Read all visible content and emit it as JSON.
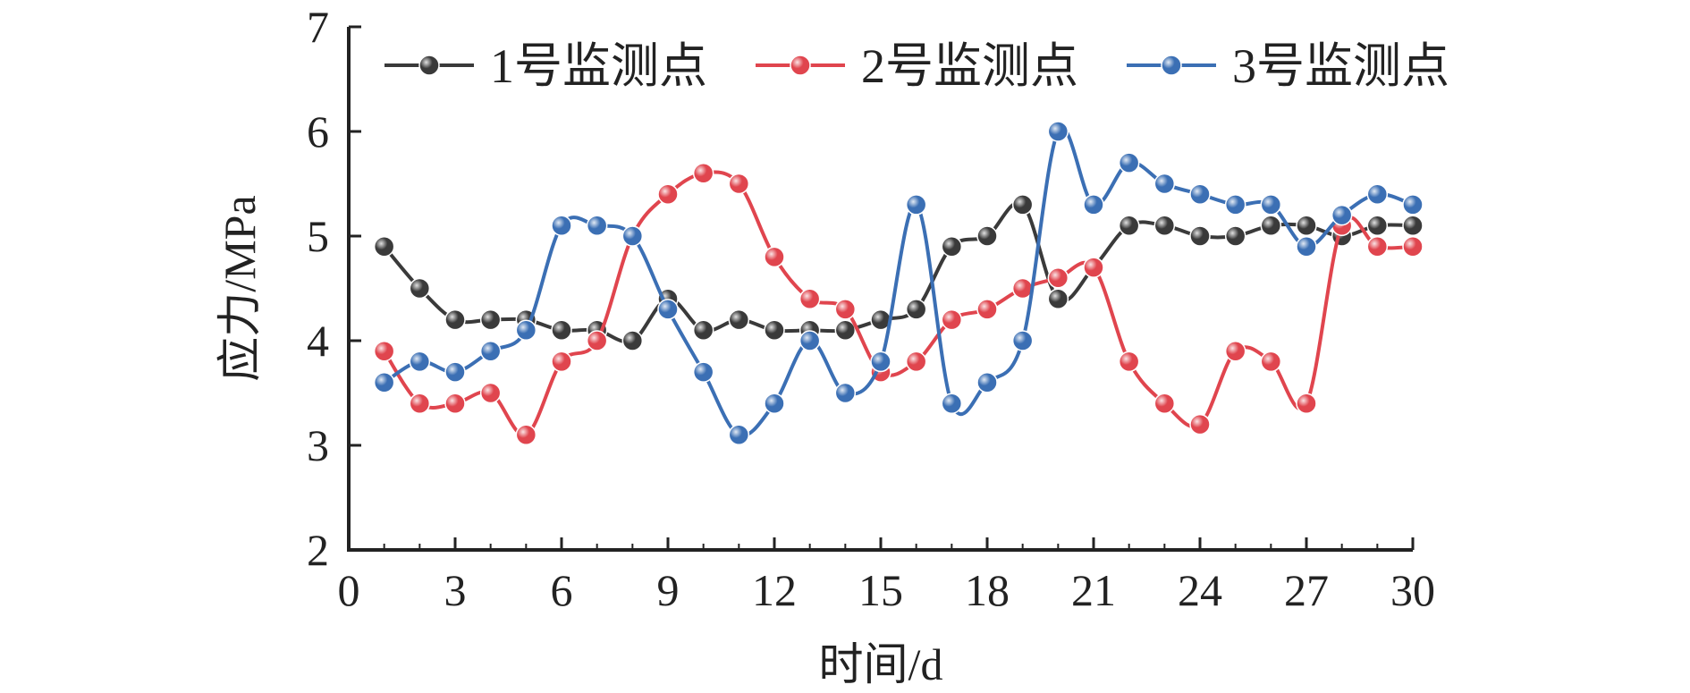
{
  "chart_data": {
    "type": "line",
    "xlabel": "时间/d",
    "ylabel": "应力/MPa",
    "xlim": [
      0,
      30
    ],
    "ylim": [
      2,
      7
    ],
    "xticks": [
      0,
      3,
      6,
      9,
      12,
      15,
      18,
      21,
      24,
      27,
      30
    ],
    "yticks": [
      2,
      3,
      4,
      5,
      6,
      7
    ],
    "grid": false,
    "legend_position": "top",
    "x": [
      1,
      2,
      3,
      4,
      5,
      6,
      7,
      8,
      9,
      10,
      11,
      12,
      13,
      14,
      15,
      16,
      17,
      18,
      19,
      20,
      21,
      22,
      23,
      24,
      25,
      26,
      27,
      28,
      29,
      30
    ],
    "series": [
      {
        "name": "1号监测点",
        "color": "#3a3a3a",
        "values": [
          4.9,
          4.5,
          4.2,
          4.2,
          4.2,
          4.1,
          4.1,
          4.0,
          4.4,
          4.1,
          4.2,
          4.1,
          4.1,
          4.1,
          4.2,
          4.3,
          4.9,
          5.0,
          5.3,
          4.4,
          4.7,
          5.1,
          5.1,
          5.0,
          5.0,
          5.1,
          5.1,
          5.0,
          5.1,
          5.1
        ]
      },
      {
        "name": "2号监测点",
        "color": "#e0454e",
        "values": [
          3.9,
          3.4,
          3.4,
          3.5,
          3.1,
          3.8,
          4.0,
          5.0,
          5.4,
          5.6,
          5.5,
          4.8,
          4.4,
          4.3,
          3.7,
          3.8,
          4.2,
          4.3,
          4.5,
          4.6,
          4.7,
          3.8,
          3.4,
          3.2,
          3.9,
          3.8,
          3.4,
          5.1,
          4.9,
          4.9
        ]
      },
      {
        "name": "3号监测点",
        "color": "#3b6fb4",
        "values": [
          3.6,
          3.8,
          3.7,
          3.9,
          4.1,
          5.1,
          5.1,
          5.0,
          4.3,
          3.7,
          3.1,
          3.4,
          4.0,
          3.5,
          3.8,
          5.3,
          3.4,
          3.6,
          4.0,
          6.0,
          5.3,
          5.7,
          5.5,
          5.4,
          5.3,
          5.3,
          4.9,
          5.2,
          5.4,
          5.3
        ]
      }
    ]
  }
}
